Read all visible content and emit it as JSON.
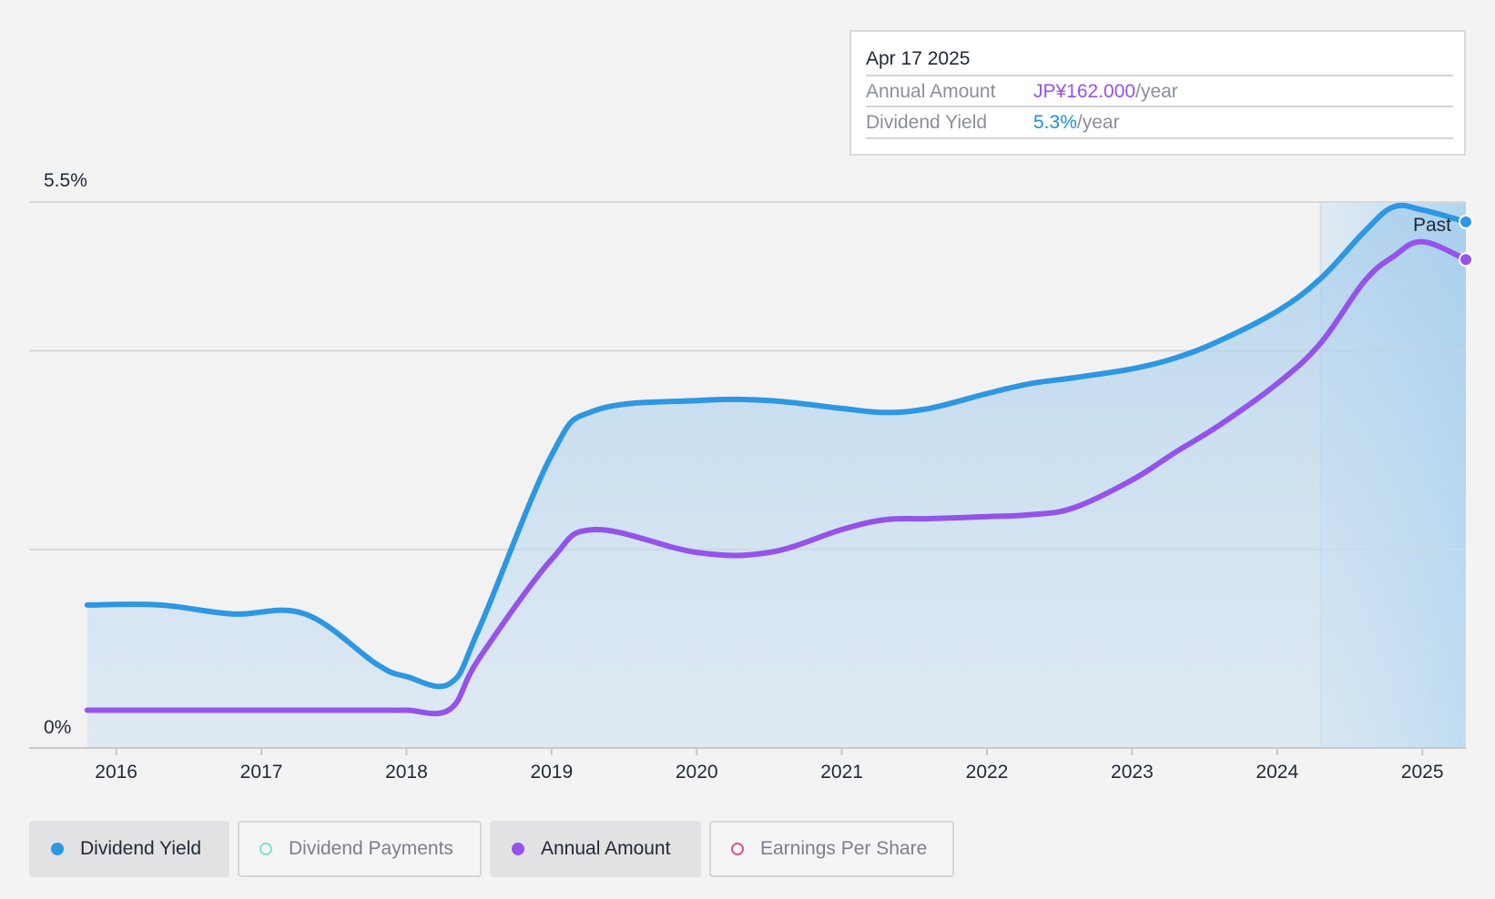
{
  "chart_data": {
    "type": "line",
    "x": [
      2015.8,
      2016.3,
      2016.8,
      2017.3,
      2017.8,
      2018.0,
      2018.3,
      2018.5,
      2019.0,
      2019.3,
      2020.0,
      2020.5,
      2021.0,
      2021.3,
      2021.6,
      2022.0,
      2022.3,
      2022.6,
      2023.0,
      2023.3,
      2023.6,
      2024.0,
      2024.3,
      2024.6,
      2024.8,
      2025.0,
      2025.3
    ],
    "series": [
      {
        "name": "Dividend Yield",
        "color": "#2d97e2",
        "values": [
          1.44,
          1.44,
          1.35,
          1.35,
          0.84,
          0.72,
          0.65,
          1.2,
          2.95,
          3.4,
          3.5,
          3.5,
          3.42,
          3.38,
          3.42,
          3.57,
          3.67,
          3.73,
          3.82,
          3.93,
          4.1,
          4.4,
          4.73,
          5.2,
          5.45,
          5.42,
          5.3
        ]
      },
      {
        "name": "Annual Amount",
        "color": "#9553ea",
        "values": [
          0.38,
          0.38,
          0.38,
          0.38,
          0.38,
          0.38,
          0.39,
          0.9,
          1.9,
          2.2,
          1.97,
          1.97,
          2.2,
          2.3,
          2.31,
          2.33,
          2.35,
          2.42,
          2.7,
          2.98,
          3.25,
          3.67,
          4.08,
          4.7,
          4.95,
          5.1,
          4.92
        ]
      }
    ],
    "x_ticks": [
      "2016",
      "2017",
      "2018",
      "2019",
      "2020",
      "2021",
      "2022",
      "2023",
      "2024",
      "2025"
    ],
    "y_labels": {
      "top": "5.5%",
      "bottom": "0%"
    },
    "ylim": [
      0,
      5.5
    ],
    "xlim": [
      2015.4,
      2025.3
    ],
    "past_label": "Past",
    "past_start": 2024.3,
    "grid": true
  },
  "tooltip": {
    "date": "Apr 17 2025",
    "rows": [
      {
        "label": "Annual Amount",
        "value": "JP¥162.000",
        "suffix": "/year",
        "color": "#9553ea"
      },
      {
        "label": "Dividend Yield",
        "value": "5.3%",
        "suffix": "/year",
        "color": "#1f8fd6"
      }
    ]
  },
  "legend": [
    {
      "label": "Dividend Yield",
      "active": true,
      "dot_color": "#2d97e2",
      "dot_style": "filled"
    },
    {
      "label": "Dividend Payments",
      "active": false,
      "dot_color": "#7fe0d6",
      "dot_style": "outline"
    },
    {
      "label": "Annual Amount",
      "active": true,
      "dot_color": "#9553ea",
      "dot_style": "filled"
    },
    {
      "label": "Earnings Per Share",
      "active": false,
      "dot_color": "#d9578f",
      "dot_style": "outline"
    }
  ]
}
